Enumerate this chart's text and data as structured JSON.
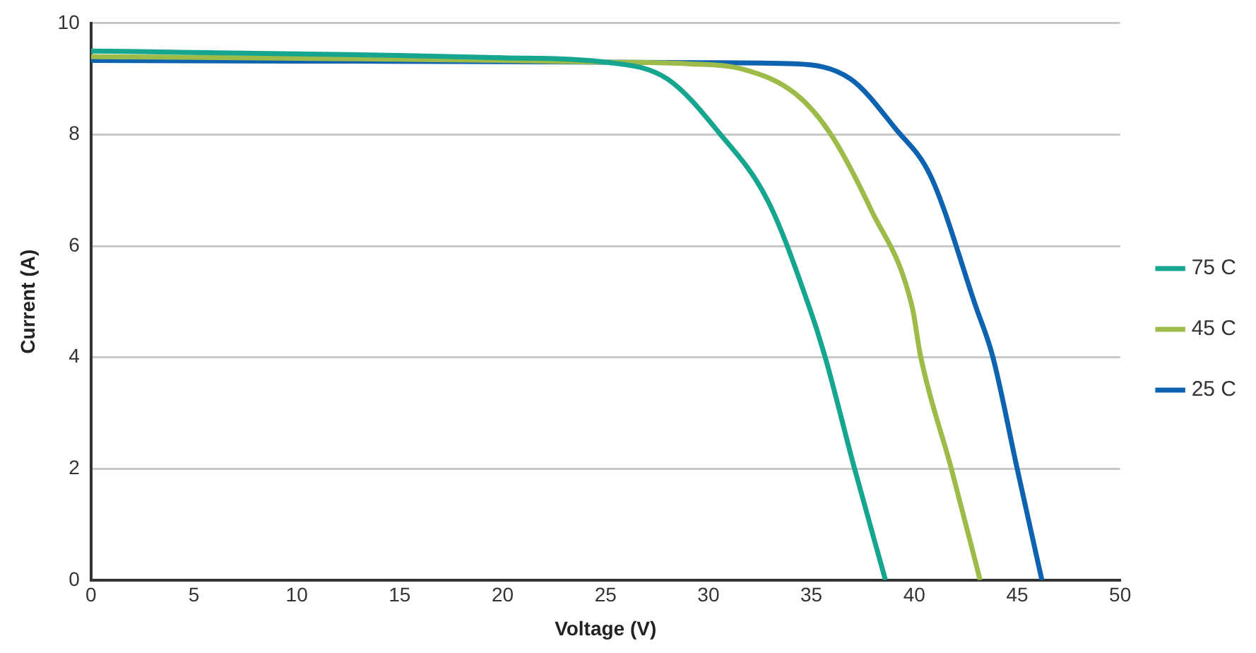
{
  "chart_data": {
    "type": "line",
    "xlabel": "Voltage (V)",
    "ylabel": "Current (A)",
    "xlim": [
      0,
      50
    ],
    "xticks": [
      0,
      5,
      10,
      15,
      20,
      25,
      30,
      35,
      40,
      45,
      50
    ],
    "ylim": [
      0,
      10
    ],
    "yticks": [
      0,
      2,
      4,
      6,
      8,
      10
    ],
    "grid": "y",
    "legend": "right",
    "marker": "none",
    "line_style": "solid",
    "series": [
      {
        "name": "75 C",
        "color": "#16a58f",
        "x": [
          0,
          10,
          15,
          20,
          25,
          28,
          30.5,
          32.9,
          34.9,
          35.65,
          37.1,
          38.6
        ],
        "values": [
          9.5,
          9.45,
          9.42,
          9.38,
          9.3,
          9.0,
          8.04,
          6.8,
          4.9,
          4.03,
          2.0,
          0
        ]
      },
      {
        "name": "45 C",
        "color": "#9dbb48",
        "x": [
          0,
          10,
          20,
          25,
          29,
          31.7,
          34.2,
          35.9,
          37.9,
          39.9,
          40.3,
          41.8,
          43.2
        ],
        "values": [
          9.4,
          9.37,
          9.33,
          9.3,
          9.27,
          9.17,
          8.74,
          8.03,
          6.65,
          4.9,
          4.03,
          2.0,
          0
        ]
      },
      {
        "name": "25 C",
        "color": "#0d63b0",
        "x": [
          0,
          10,
          20,
          25,
          30,
          34.2,
          36.9,
          39.1,
          40.8,
          43.0,
          43.8,
          45.0,
          46.2
        ],
        "values": [
          9.33,
          9.32,
          9.31,
          9.3,
          9.29,
          9.27,
          9.0,
          8.1,
          7.25,
          4.9,
          4.03,
          2.0,
          0
        ]
      }
    ]
  }
}
